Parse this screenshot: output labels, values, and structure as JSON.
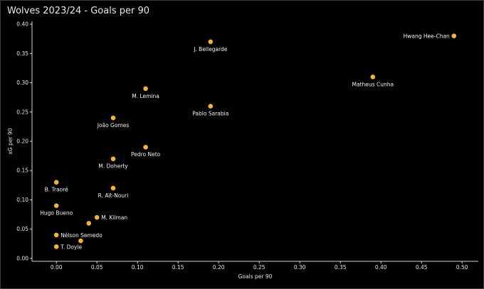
{
  "chart_data": {
    "type": "scatter",
    "title": "Wolves 2023/24 - Goals per 90",
    "xlabel": "Goals per 90",
    "ylabel": "xG per 90",
    "xlim": [
      -0.03,
      0.52
    ],
    "ylim": [
      -0.005,
      0.405
    ],
    "xticks": [
      "0.00",
      "0.05",
      "0.10",
      "0.15",
      "0.20",
      "0.25",
      "0.30",
      "0.35",
      "0.40",
      "0.45",
      "0.50"
    ],
    "yticks": [
      "0.00",
      "0.05",
      "0.10",
      "0.15",
      "0.20",
      "0.25",
      "0.30",
      "0.35",
      "0.40"
    ],
    "grid": false,
    "point_color": "#f0b43c",
    "points": [
      {
        "name": "Hwang Hee-Chan",
        "x": 0.49,
        "y": 0.38,
        "label_pos": "left"
      },
      {
        "name": "J. Bellegarde",
        "x": 0.19,
        "y": 0.37,
        "label_pos": "below"
      },
      {
        "name": "Matheus Cunha",
        "x": 0.39,
        "y": 0.31,
        "label_pos": "below"
      },
      {
        "name": "M. Lemina",
        "x": 0.11,
        "y": 0.29,
        "label_pos": "below"
      },
      {
        "name": "Pablo Sarabia",
        "x": 0.19,
        "y": 0.26,
        "label_pos": "below"
      },
      {
        "name": "João Gomes",
        "x": 0.07,
        "y": 0.24,
        "label_pos": "below"
      },
      {
        "name": "Pedro Neto",
        "x": 0.11,
        "y": 0.19,
        "label_pos": "below"
      },
      {
        "name": "M. Doherty",
        "x": 0.07,
        "y": 0.17,
        "label_pos": "below"
      },
      {
        "name": "B. Traoré",
        "x": 0.0,
        "y": 0.13,
        "label_pos": "below"
      },
      {
        "name": "R. Aït-Nouri",
        "x": 0.07,
        "y": 0.12,
        "label_pos": "below"
      },
      {
        "name": "Hugo Bueno",
        "x": 0.0,
        "y": 0.09,
        "label_pos": "below"
      },
      {
        "name": "M. Kilman",
        "x": 0.05,
        "y": 0.07,
        "label_pos": "right"
      },
      {
        "name": "",
        "x": 0.04,
        "y": 0.06,
        "label_pos": "none"
      },
      {
        "name": "Nélson Semedo",
        "x": 0.0,
        "y": 0.04,
        "label_pos": "right"
      },
      {
        "name": "",
        "x": 0.03,
        "y": 0.03,
        "label_pos": "none"
      },
      {
        "name": "T. Doyle",
        "x": 0.0,
        "y": 0.02,
        "label_pos": "right"
      }
    ]
  }
}
